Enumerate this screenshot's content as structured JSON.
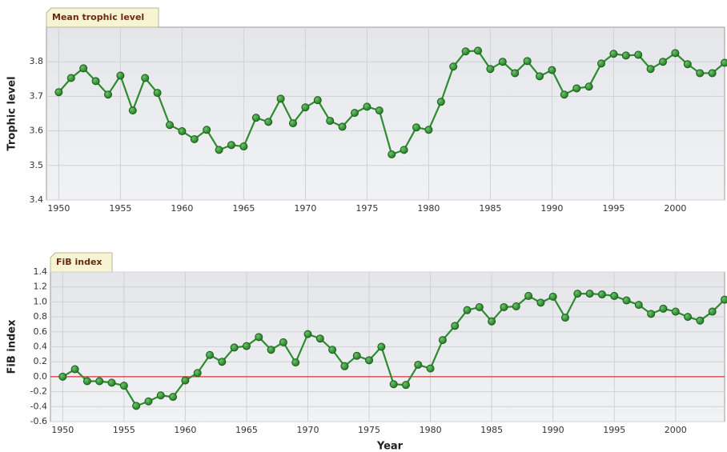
{
  "chart_data": [
    {
      "type": "line",
      "title": "Mean trophic level",
      "y_label": "Trophic level",
      "x": [
        1950,
        1951,
        1952,
        1953,
        1954,
        1955,
        1956,
        1957,
        1958,
        1959,
        1960,
        1961,
        1962,
        1963,
        1964,
        1965,
        1966,
        1967,
        1968,
        1969,
        1970,
        1971,
        1972,
        1973,
        1974,
        1975,
        1976,
        1977,
        1978,
        1979,
        1980,
        1981,
        1982,
        1983,
        1984,
        1985,
        1986,
        1987,
        1988,
        1989,
        1990,
        1991,
        1992,
        1993,
        1994,
        1995,
        1996,
        1997,
        1998,
        1999,
        2000,
        2001,
        2002,
        2003,
        2004
      ],
      "series": [
        {
          "color": "#2e8b2e",
          "values": [
            3.712,
            3.753,
            3.781,
            3.744,
            3.705,
            3.76,
            3.659,
            3.753,
            3.71,
            3.617,
            3.599,
            3.576,
            3.603,
            3.545,
            3.559,
            3.555,
            3.638,
            3.626,
            3.693,
            3.622,
            3.668,
            3.689,
            3.629,
            3.612,
            3.652,
            3.67,
            3.659,
            3.532,
            3.545,
            3.61,
            3.603,
            3.684,
            3.786,
            3.83,
            3.832,
            3.779,
            3.8,
            3.767,
            3.802,
            3.758,
            3.776,
            3.705,
            3.723,
            3.728,
            3.795,
            3.823,
            3.818,
            3.82,
            3.779,
            3.8,
            3.825,
            3.793,
            3.767,
            3.767,
            3.797
          ]
        }
      ],
      "xlim": [
        1949,
        2004
      ],
      "xticks": [
        1950,
        1955,
        1960,
        1965,
        1970,
        1975,
        1980,
        1985,
        1990,
        1995,
        2000
      ],
      "ylim": [
        3.4,
        3.9
      ],
      "yticks": [
        3.4,
        3.5,
        3.6,
        3.7,
        3.8
      ],
      "grid": true
    },
    {
      "type": "line",
      "title": "FiB index",
      "y_label": "FiB index",
      "x_label": "Year",
      "x": [
        1950,
        1951,
        1952,
        1953,
        1954,
        1955,
        1956,
        1957,
        1958,
        1959,
        1960,
        1961,
        1962,
        1963,
        1964,
        1965,
        1966,
        1967,
        1968,
        1969,
        1970,
        1971,
        1972,
        1973,
        1974,
        1975,
        1976,
        1977,
        1978,
        1979,
        1980,
        1981,
        1982,
        1983,
        1984,
        1985,
        1986,
        1987,
        1988,
        1989,
        1990,
        1991,
        1992,
        1993,
        1994,
        1995,
        1996,
        1997,
        1998,
        1999,
        2000,
        2001,
        2002,
        2003,
        2004
      ],
      "series": [
        {
          "color": "#2e8b2e",
          "values": [
            0,
            0.1,
            -0.06,
            -0.06,
            -0.08,
            -0.12,
            -0.39,
            -0.33,
            -0.25,
            -0.27,
            -0.05,
            0.05,
            0.29,
            0.2,
            0.39,
            0.41,
            0.53,
            0.36,
            0.46,
            0.19,
            0.57,
            0.51,
            0.36,
            0.14,
            0.28,
            0.22,
            0.4,
            -0.1,
            -0.11,
            0.16,
            0.11,
            0.49,
            0.68,
            0.89,
            0.93,
            0.74,
            0.93,
            0.94,
            1.08,
            0.99,
            1.07,
            0.79,
            1.11,
            1.11,
            1.1,
            1.08,
            1.02,
            0.96,
            0.84,
            0.91,
            0.87,
            0.8,
            0.75,
            0.87,
            1.03
          ]
        }
      ],
      "xlim": [
        1949,
        2004
      ],
      "xticks": [
        1950,
        1955,
        1960,
        1965,
        1970,
        1975,
        1980,
        1985,
        1990,
        1995,
        2000
      ],
      "ylim": [
        -0.6,
        1.4
      ],
      "yticks": [
        -0.6,
        -0.4,
        -0.2,
        {
          "value": 0,
          "label": "0.0"
        },
        0.2,
        0.4,
        0.6,
        0.8,
        {
          "value": 1,
          "label": "1.0"
        },
        1.2,
        1.4
      ],
      "reference_line": {
        "value": 0,
        "color": "#e03030"
      },
      "grid": true
    }
  ]
}
